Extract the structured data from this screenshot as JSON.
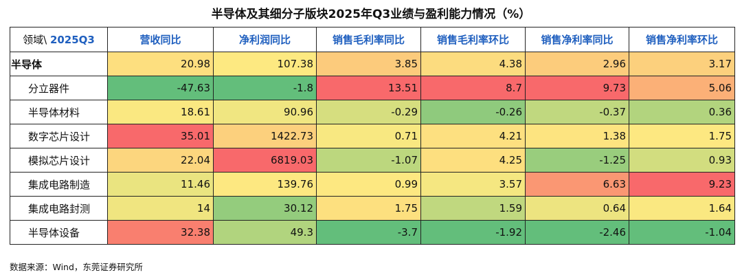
{
  "title": "半导体及其细分子版块2025年Q3业绩与盈利能力情况（%）",
  "source": "数据来源：Wind，东莞证券研究所",
  "chart_data": {
    "type": "heatmap",
    "title": "半导体及其细分子版块2025年Q3业绩与盈利能力情况（%）",
    "corner": {
      "left": "领域\\ ",
      "right": "2025Q3"
    },
    "columns": [
      "营收同比",
      "净利润同比",
      "销售毛利率同比",
      "销售毛利率环比",
      "销售净利率同比",
      "销售净利率环比"
    ],
    "rows": [
      {
        "label": "半导体",
        "level": "top",
        "values": [
          20.98,
          107.38,
          3.85,
          4.38,
          2.96,
          3.17
        ],
        "display": [
          "20.98",
          "107.38",
          "3.85",
          "4.38",
          "2.96",
          "3.17"
        ]
      },
      {
        "label": "分立器件",
        "level": "sub",
        "values": [
          -47.63,
          -1.8,
          13.51,
          8.7,
          9.73,
          5.06
        ],
        "display": [
          "-47.63",
          "-1.8",
          "13.51",
          "8.7",
          "9.73",
          "5.06"
        ]
      },
      {
        "label": "半导体材料",
        "level": "sub",
        "values": [
          18.61,
          90.96,
          -0.29,
          -0.26,
          -0.37,
          0.36
        ],
        "display": [
          "18.61",
          "90.96",
          "-0.29",
          "-0.26",
          "-0.37",
          "0.36"
        ]
      },
      {
        "label": "数字芯片设计",
        "level": "sub",
        "values": [
          35.01,
          1422.73,
          0.71,
          4.21,
          1.38,
          1.75
        ],
        "display": [
          "35.01",
          "1422.73",
          "0.71",
          "4.21",
          "1.38",
          "1.75"
        ]
      },
      {
        "label": "模拟芯片设计",
        "level": "sub",
        "values": [
          22.04,
          6819.03,
          -1.07,
          4.25,
          -1.25,
          0.93
        ],
        "display": [
          "22.04",
          "6819.03",
          "-1.07",
          "4.25",
          "-1.25",
          "0.93"
        ]
      },
      {
        "label": "集成电路制造",
        "level": "sub",
        "values": [
          11.46,
          139.76,
          0.99,
          3.57,
          6.63,
          9.23
        ],
        "display": [
          "11.46",
          "139.76",
          "0.99",
          "3.57",
          "6.63",
          "9.23"
        ]
      },
      {
        "label": "集成电路封测",
        "level": "sub",
        "values": [
          14,
          30.12,
          1.75,
          1.59,
          0.64,
          1.64
        ],
        "display": [
          "14",
          "30.12",
          "1.75",
          "1.59",
          "0.64",
          "1.64"
        ]
      },
      {
        "label": "半导体设备",
        "level": "sub",
        "values": [
          32.38,
          49.3,
          -3.7,
          -1.92,
          -2.46,
          -1.04
        ],
        "display": [
          "32.38",
          "49.3",
          "-3.7",
          "-1.92",
          "-2.46",
          "-1.04"
        ]
      }
    ],
    "colors": {
      "low": "#63be7b",
      "mid": "#fde981",
      "high": "#f8696b",
      "header_text": "#1f5fbf"
    }
  }
}
